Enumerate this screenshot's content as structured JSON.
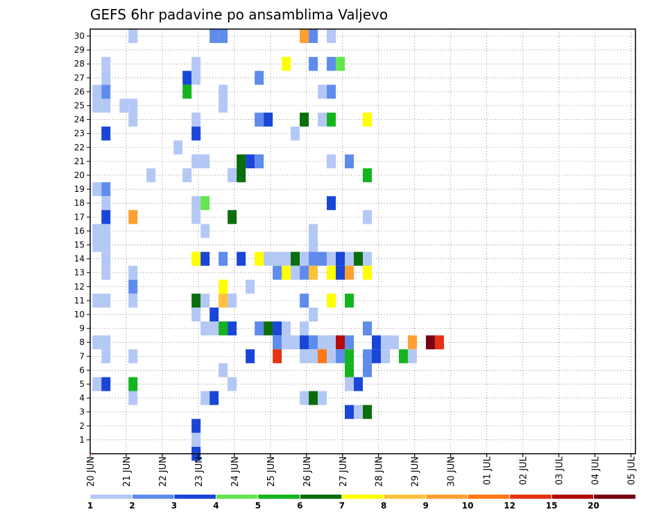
{
  "chart_data": {
    "type": "heatmap",
    "title": "GEFS 6hr padavine po ansamblima Valjevo",
    "xlabel": "",
    "ylabel": "",
    "ylim": [
      0,
      30
    ],
    "y_ticks": [
      "1",
      "2",
      "3",
      "4",
      "5",
      "6",
      "7",
      "8",
      "9",
      "10",
      "11",
      "12",
      "13",
      "14",
      "15",
      "16",
      "17",
      "18",
      "19",
      "20",
      "21",
      "22",
      "23",
      "24",
      "25",
      "26",
      "27",
      "28",
      "29",
      "30"
    ],
    "x_ticks": [
      "20 JUN",
      "21 JUN",
      "22 JUN",
      "23 JUN",
      "24 JUN",
      "25 JUN",
      "26 JUN",
      "27 JUN",
      "28 JUN",
      "29 JUN",
      "30 JUN",
      "01 JUL",
      "02 JUL",
      "03 JUL",
      "04 JUL",
      "05 JUL"
    ],
    "x_range_6h_steps": [
      0,
      60
    ],
    "grid": true,
    "legend_position": "bottom",
    "colorbar": {
      "labels": [
        "1",
        "2",
        "3",
        "4",
        "5",
        "6",
        "7",
        "8",
        "9",
        "10",
        "12",
        "15",
        "20"
      ],
      "colors": [
        "#b4c8f5",
        "#5f8cec",
        "#1a46d8",
        "#64e650",
        "#14b41e",
        "#0a6e0a",
        "#ffff00",
        "#ffc03c",
        "#ffa030",
        "#ff7814",
        "#e63214",
        "#b40a0a",
        "#780014"
      ]
    },
    "cell_value_note": "each cell: [member, step_6h, precip_mm]",
    "cells": [
      [
        30,
        4,
        1
      ],
      [
        30,
        13,
        2
      ],
      [
        30,
        14,
        2
      ],
      [
        30,
        23,
        9
      ],
      [
        30,
        24,
        2
      ],
      [
        30,
        26,
        1
      ],
      [
        28,
        1,
        1
      ],
      [
        28,
        11,
        1
      ],
      [
        28,
        21,
        7
      ],
      [
        28,
        24,
        2
      ],
      [
        28,
        26,
        2
      ],
      [
        28,
        27,
        4
      ],
      [
        27,
        1,
        1
      ],
      [
        27,
        10,
        3
      ],
      [
        27,
        11,
        1
      ],
      [
        27,
        18,
        2
      ],
      [
        26,
        0,
        1
      ],
      [
        26,
        1,
        2
      ],
      [
        26,
        10,
        5
      ],
      [
        26,
        14,
        1
      ],
      [
        26,
        25,
        1
      ],
      [
        26,
        26,
        2
      ],
      [
        25,
        0,
        1
      ],
      [
        25,
        1,
        1
      ],
      [
        25,
        3,
        1
      ],
      [
        25,
        4,
        1
      ],
      [
        25,
        14,
        1
      ],
      [
        24,
        4,
        1
      ],
      [
        24,
        11,
        1
      ],
      [
        24,
        18,
        2
      ],
      [
        24,
        19,
        3
      ],
      [
        24,
        23,
        6
      ],
      [
        24,
        25,
        1
      ],
      [
        24,
        26,
        5
      ],
      [
        24,
        30,
        7
      ],
      [
        23,
        1,
        3
      ],
      [
        23,
        11,
        3
      ],
      [
        23,
        22,
        1
      ],
      [
        22,
        9,
        1
      ],
      [
        21,
        11,
        1
      ],
      [
        21,
        12,
        1
      ],
      [
        21,
        16,
        6
      ],
      [
        21,
        17,
        3
      ],
      [
        21,
        18,
        2
      ],
      [
        21,
        26,
        1
      ],
      [
        21,
        28,
        2
      ],
      [
        20,
        6,
        1
      ],
      [
        20,
        10,
        1
      ],
      [
        20,
        15,
        1
      ],
      [
        20,
        16,
        6
      ],
      [
        20,
        30,
        5
      ],
      [
        19,
        0,
        1
      ],
      [
        19,
        1,
        2
      ],
      [
        18,
        1,
        1
      ],
      [
        18,
        11,
        1
      ],
      [
        18,
        12,
        4
      ],
      [
        18,
        26,
        3
      ],
      [
        17,
        1,
        3
      ],
      [
        17,
        4,
        9
      ],
      [
        17,
        11,
        1
      ],
      [
        17,
        15,
        6
      ],
      [
        17,
        30,
        1
      ],
      [
        16,
        0,
        1
      ],
      [
        16,
        1,
        1
      ],
      [
        16,
        12,
        1
      ],
      [
        16,
        24,
        1
      ],
      [
        15,
        0,
        1
      ],
      [
        15,
        1,
        1
      ],
      [
        15,
        24,
        1
      ],
      [
        14,
        1,
        1
      ],
      [
        14,
        11,
        7
      ],
      [
        14,
        12,
        3
      ],
      [
        14,
        14,
        2
      ],
      [
        14,
        16,
        3
      ],
      [
        14,
        18,
        7
      ],
      [
        14,
        19,
        1
      ],
      [
        14,
        20,
        1
      ],
      [
        14,
        21,
        1
      ],
      [
        14,
        22,
        6
      ],
      [
        14,
        23,
        1
      ],
      [
        14,
        24,
        2
      ],
      [
        14,
        25,
        2
      ],
      [
        14,
        26,
        1
      ],
      [
        14,
        27,
        3
      ],
      [
        14,
        28,
        1
      ],
      [
        14,
        29,
        6
      ],
      [
        14,
        30,
        1
      ],
      [
        13,
        1,
        1
      ],
      [
        13,
        4,
        1
      ],
      [
        13,
        20,
        2
      ],
      [
        13,
        21,
        7
      ],
      [
        13,
        22,
        1
      ],
      [
        13,
        23,
        2
      ],
      [
        13,
        24,
        8
      ],
      [
        13,
        26,
        7
      ],
      [
        13,
        27,
        3
      ],
      [
        13,
        28,
        9
      ],
      [
        13,
        30,
        7
      ],
      [
        12,
        4,
        2
      ],
      [
        12,
        14,
        7
      ],
      [
        12,
        17,
        1
      ],
      [
        11,
        0,
        1
      ],
      [
        11,
        1,
        1
      ],
      [
        11,
        4,
        1
      ],
      [
        11,
        11,
        6
      ],
      [
        11,
        12,
        1
      ],
      [
        11,
        14,
        8
      ],
      [
        11,
        15,
        1
      ],
      [
        11,
        23,
        2
      ],
      [
        11,
        26,
        7
      ],
      [
        11,
        28,
        5
      ],
      [
        10,
        11,
        1
      ],
      [
        10,
        13,
        3
      ],
      [
        10,
        24,
        1
      ],
      [
        9,
        12,
        1
      ],
      [
        9,
        13,
        1
      ],
      [
        9,
        14,
        5
      ],
      [
        9,
        15,
        3
      ],
      [
        9,
        18,
        2
      ],
      [
        9,
        19,
        6
      ],
      [
        9,
        20,
        3
      ],
      [
        9,
        21,
        1
      ],
      [
        9,
        23,
        1
      ],
      [
        9,
        30,
        2
      ],
      [
        8,
        0,
        1
      ],
      [
        8,
        1,
        1
      ],
      [
        8,
        20,
        2
      ],
      [
        8,
        21,
        1
      ],
      [
        8,
        22,
        1
      ],
      [
        8,
        23,
        3
      ],
      [
        8,
        24,
        2
      ],
      [
        8,
        25,
        1
      ],
      [
        8,
        26,
        1
      ],
      [
        8,
        27,
        15
      ],
      [
        8,
        28,
        2
      ],
      [
        8,
        31,
        3
      ],
      [
        8,
        32,
        1
      ],
      [
        8,
        33,
        1
      ],
      [
        8,
        35,
        9
      ],
      [
        8,
        37,
        20
      ],
      [
        8,
        38,
        12
      ],
      [
        7,
        1,
        1
      ],
      [
        7,
        4,
        1
      ],
      [
        7,
        17,
        3
      ],
      [
        7,
        20,
        12
      ],
      [
        7,
        23,
        1
      ],
      [
        7,
        24,
        1
      ],
      [
        7,
        25,
        10
      ],
      [
        7,
        26,
        1
      ],
      [
        7,
        27,
        2
      ],
      [
        7,
        28,
        5
      ],
      [
        7,
        30,
        2
      ],
      [
        7,
        31,
        3
      ],
      [
        7,
        32,
        1
      ],
      [
        7,
        34,
        5
      ],
      [
        7,
        35,
        1
      ],
      [
        6,
        14,
        1
      ],
      [
        6,
        28,
        5
      ],
      [
        6,
        30,
        2
      ],
      [
        5,
        0,
        1
      ],
      [
        5,
        1,
        3
      ],
      [
        5,
        4,
        5
      ],
      [
        5,
        15,
        1
      ],
      [
        5,
        28,
        1
      ],
      [
        5,
        29,
        3
      ],
      [
        4,
        4,
        1
      ],
      [
        4,
        12,
        1
      ],
      [
        4,
        13,
        3
      ],
      [
        4,
        23,
        1
      ],
      [
        4,
        24,
        6
      ],
      [
        4,
        25,
        1
      ],
      [
        3,
        28,
        3
      ],
      [
        3,
        29,
        1
      ],
      [
        3,
        30,
        6
      ],
      [
        2,
        11,
        3
      ],
      [
        1,
        11,
        1
      ],
      [
        0,
        11,
        3
      ]
    ]
  }
}
